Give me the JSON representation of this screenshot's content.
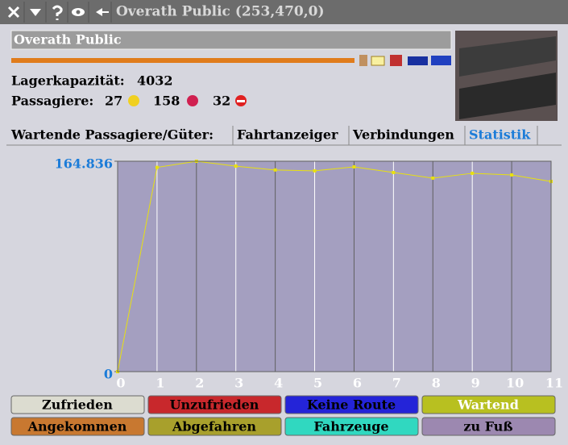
{
  "window": {
    "title": "Overath Public (253,470,0)"
  },
  "station": {
    "name": "Overath Public",
    "capacity_label": "Lagerkapazität:",
    "capacity": 4032,
    "passengers_label": "Passagiere:",
    "happy": 27,
    "unhappy": 158,
    "no_route": 32
  },
  "tabs": [
    "Wartende Passagiere/Güter:",
    "Fahrtanzeiger",
    "Verbindungen",
    "Statistik"
  ],
  "active_tab": 3,
  "chart_data": {
    "type": "line",
    "x": [
      0,
      1,
      2,
      3,
      4,
      5,
      6,
      7,
      8,
      9,
      10,
      11
    ],
    "xlim": [
      0,
      11
    ],
    "xticks": [
      0,
      1,
      2,
      3,
      4,
      5,
      6,
      7,
      8,
      9,
      10,
      11
    ],
    "ylim": [
      0,
      164836
    ],
    "yticks": [
      0,
      {
        "value": 164836,
        "label": "164.836"
      }
    ],
    "grid": true,
    "background": "#a49fc0",
    "series": [
      {
        "color": "#e8e010",
        "values": [
          0,
          160000,
          164836,
          161000,
          158000,
          157300,
          160400,
          156000,
          151600,
          155400,
          154100,
          149000
        ]
      }
    ]
  },
  "buttons": [
    {
      "label": "Zufrieden",
      "color": "#dcdcd0",
      "text_color": "#000000"
    },
    {
      "label": "Unzufrieden",
      "color": "#c8282c",
      "text_color": "#000000"
    },
    {
      "label": "Keine Route",
      "color": "#2424d8",
      "text_color": "#000000"
    },
    {
      "label": "Wartend",
      "color": "#b8c020",
      "text_color": "#ffffff"
    },
    {
      "label": "Angekommen",
      "color": "#c87830",
      "text_color": "#000000"
    },
    {
      "label": "Abgefahren",
      "color": "#a8a02c",
      "text_color": "#000000"
    },
    {
      "label": "Fahrzeuge",
      "color": "#30d8c0",
      "text_color": "#000000"
    },
    {
      "label": "zu Fuß",
      "color": "#9c88b0",
      "text_color": "#000000"
    }
  ]
}
